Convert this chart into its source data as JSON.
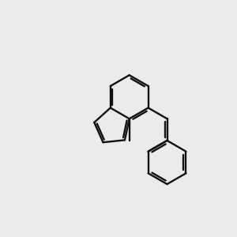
{
  "bg_color": "#ebebeb",
  "bond_color": "#111111",
  "N_color": "#0000dd",
  "O_color": "#dd0000",
  "S_color": "#aaaa00",
  "NH_color": "#0055aa",
  "lw": 1.7,
  "lw_thick": 2.0
}
